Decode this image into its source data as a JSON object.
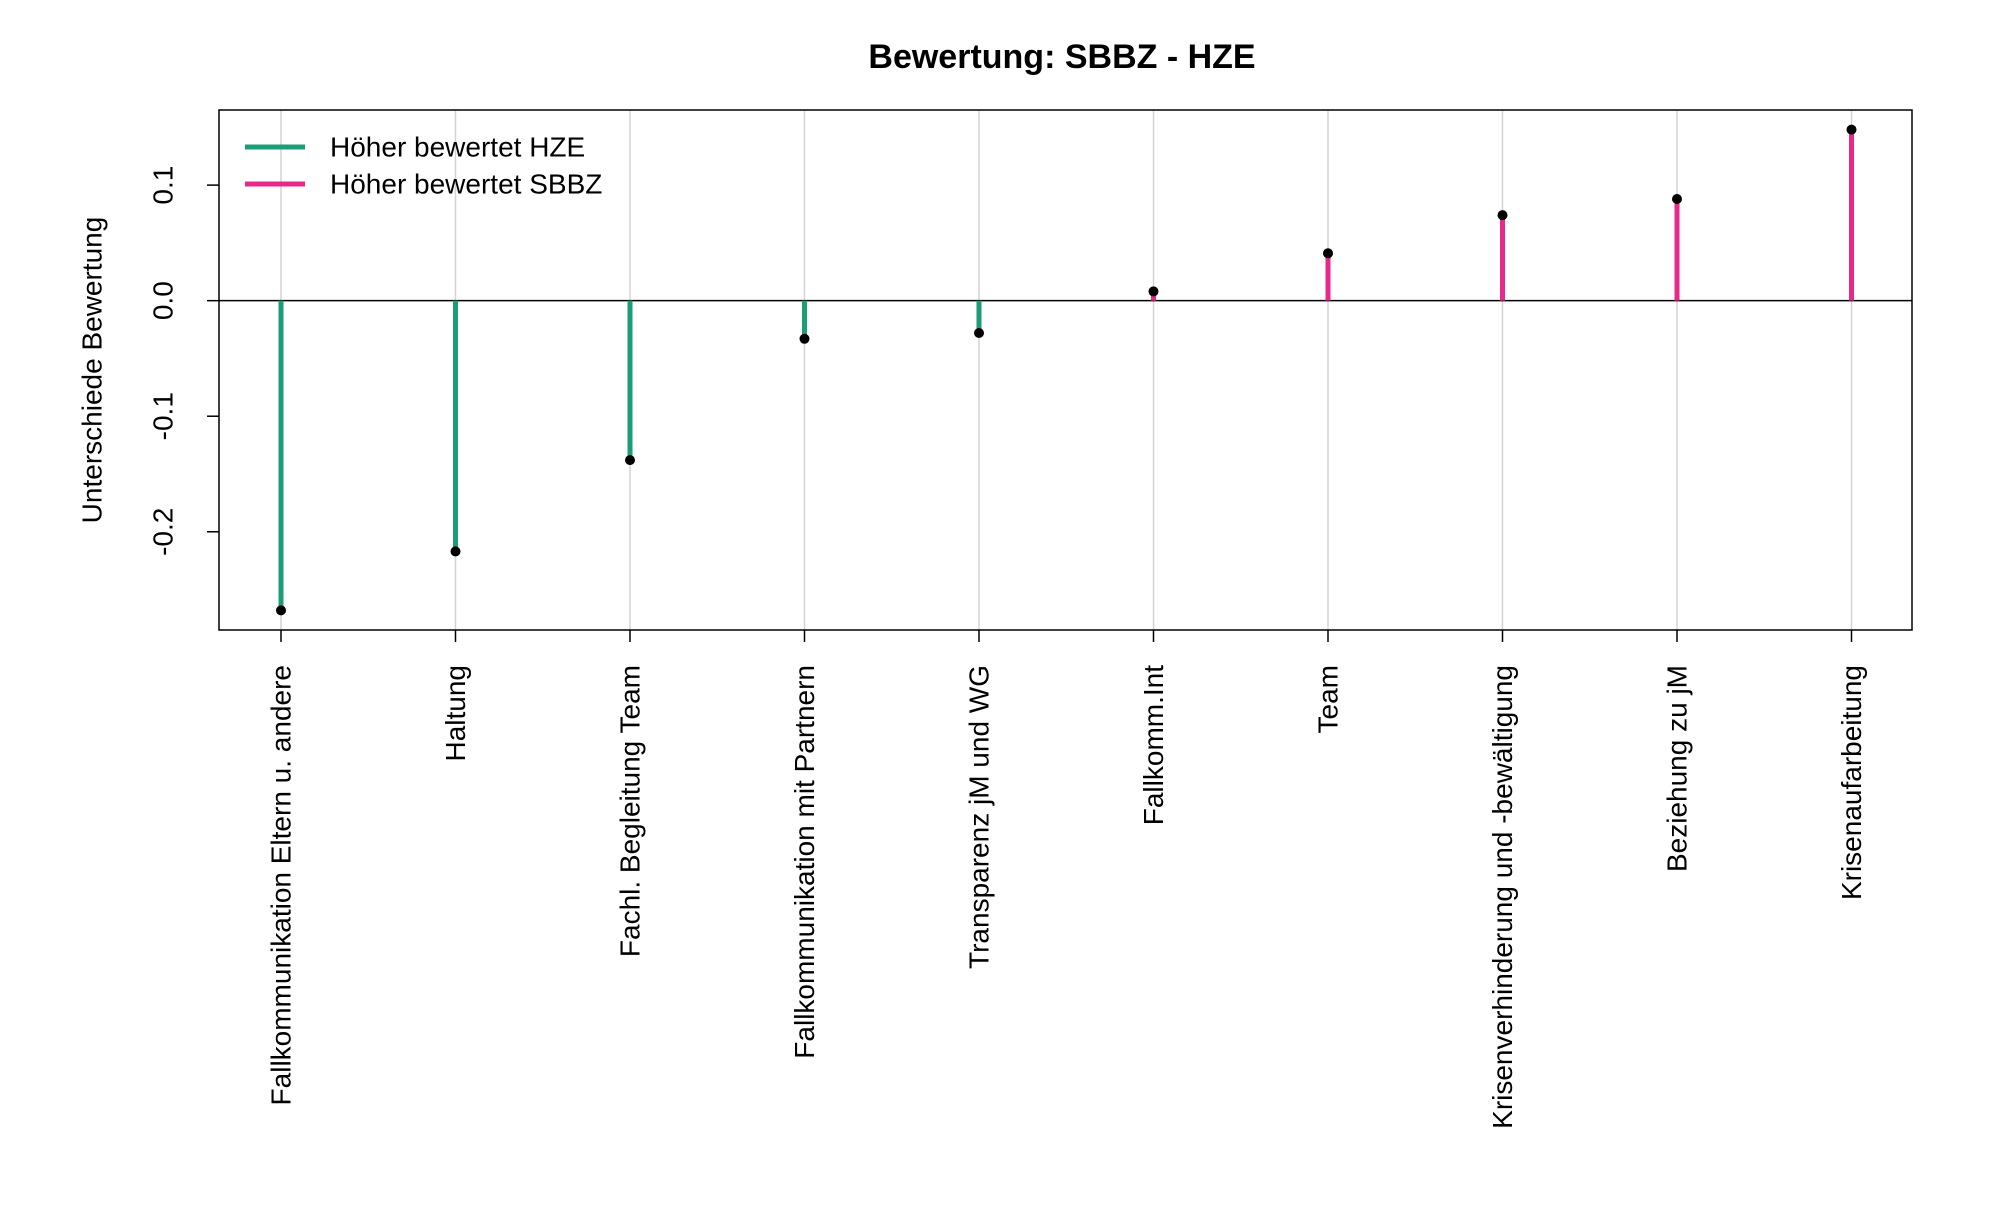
{
  "chart_data": {
    "type": "lollipop",
    "title": "Bewertung: SBBZ - HZE",
    "xlabel": "",
    "ylabel": "Unterschiede Bewertung",
    "ylim": [
      -0.285,
      0.165
    ],
    "yticks": [
      -0.2,
      -0.1,
      0.0,
      0.1
    ],
    "ytick_labels": [
      "-0.2",
      "-0.1",
      "0.0",
      "0.1"
    ],
    "baseline": 0.0,
    "grid": "vertical light gray lines at each category",
    "legend_position": "top-left",
    "legend": [
      {
        "label": "Höher bewertet HZE",
        "color": "#1b9e77"
      },
      {
        "label": "Höher bewertet SBBZ",
        "color": "#e7298a"
      }
    ],
    "categories": [
      "Fallkommunikation Eltern u. andere",
      "Haltung",
      "Fachl. Begleitung Team",
      "Fallkommunikation mit Partnern",
      "Transparenz jM und WG",
      "Fallkomm.Int",
      "Team",
      "Krisenverhinderung und -bewältigung",
      "Beziehung zu jM",
      "Krisenaufarbeitung"
    ],
    "values": [
      -0.268,
      -0.217,
      -0.138,
      -0.033,
      -0.028,
      0.008,
      0.041,
      0.074,
      0.088,
      0.148
    ],
    "colors": {
      "negative": "#1b9e77",
      "positive": "#e7298a",
      "point": "#000000",
      "grid": "#d3d3d3",
      "axis": "#000000"
    }
  }
}
